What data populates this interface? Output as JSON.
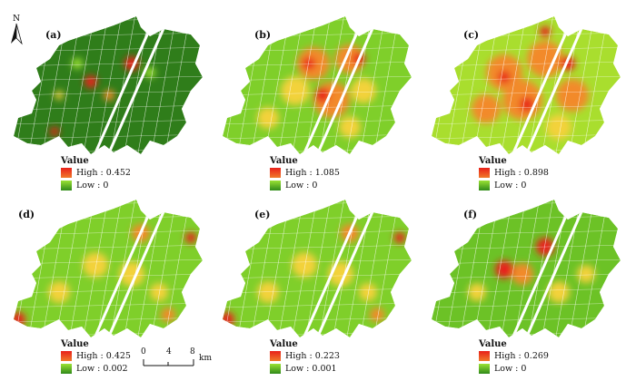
{
  "north_arrow": {
    "label": "N"
  },
  "panels": [
    {
      "label": "(a)",
      "scheme": "low",
      "legend": {
        "title": "Value",
        "high": "High : 0.452",
        "low": "Low : 0"
      }
    },
    {
      "label": "(b)",
      "scheme": "high",
      "legend": {
        "title": "Value",
        "high": "High : 1.085",
        "low": "Low : 0"
      }
    },
    {
      "label": "(c)",
      "scheme": "hot",
      "legend": {
        "title": "Value",
        "high": "High : 0.898",
        "low": "Low : 0"
      }
    },
    {
      "label": "(d)",
      "scheme": "mid",
      "legend": {
        "title": "Value",
        "high": "High : 0.425",
        "low": "Low : 0.002"
      }
    },
    {
      "label": "(e)",
      "scheme": "mid",
      "legend": {
        "title": "Value",
        "high": "High : 0.223",
        "low": "Low : 0.001"
      }
    },
    {
      "label": "(f)",
      "scheme": "mid2",
      "legend": {
        "title": "Value",
        "high": "High : 0.269",
        "low": "Low : 0"
      }
    }
  ],
  "scale_bar": {
    "ticks": [
      "0",
      "4",
      "8"
    ],
    "unit": "km"
  },
  "colors": {
    "high": "#e8201a",
    "mid": "#f3d23a",
    "low": "#2f7d1a",
    "light": "#9be233"
  }
}
